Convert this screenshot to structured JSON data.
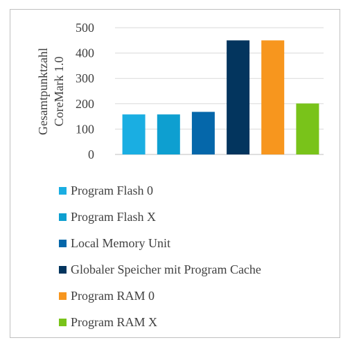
{
  "chart_data": {
    "type": "bar",
    "ylabel_lines": [
      "Gesamtpunktzahl",
      "CoreMark 1.0"
    ],
    "ylim": [
      0,
      500
    ],
    "yticks": [
      0,
      100,
      200,
      300,
      400,
      500
    ],
    "grid": true,
    "legend_position": "bottom",
    "series": [
      {
        "name": "Program Flash 0",
        "value": 158,
        "color": "#1aaee2"
      },
      {
        "name": "Program Flash X",
        "value": 158,
        "color": "#0e9fd0"
      },
      {
        "name": "Local Memory Unit",
        "value": 168,
        "color": "#0567aa"
      },
      {
        "name": "Globaler Speicher mit Program Cache",
        "value": 450,
        "color": "#03355e"
      },
      {
        "name": "Program RAM 0",
        "value": 450,
        "color": "#f7961e"
      },
      {
        "name": "Program RAM X",
        "value": 201,
        "color": "#79c31a"
      }
    ]
  }
}
